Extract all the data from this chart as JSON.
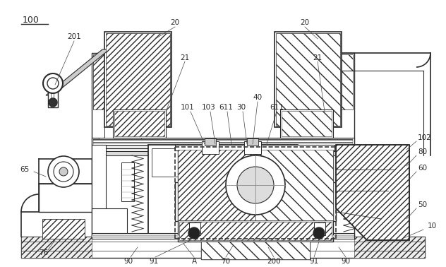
{
  "bg_color": "#ffffff",
  "lc": "#2a2a2a",
  "figsize": [
    6.32,
    3.78
  ],
  "dpi": 100
}
